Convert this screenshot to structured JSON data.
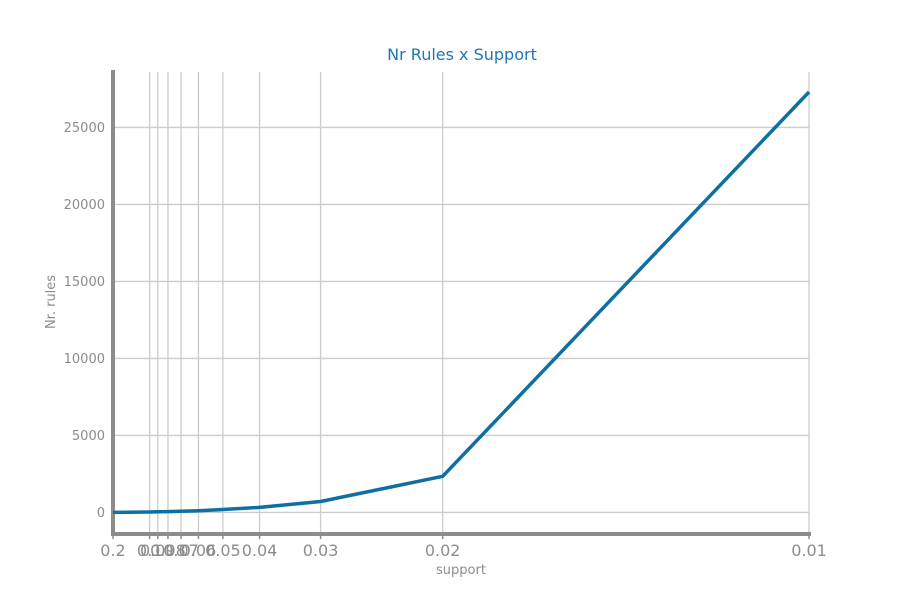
{
  "chart_data": {
    "type": "line",
    "title": "Nr Rules x Support",
    "xlabel": "support",
    "ylabel": "Nr. rules",
    "x_axis_reversed": true,
    "x_ticks": [
      "0.2",
      "0.1",
      "0.09",
      "0.08",
      "0.07",
      "0.06",
      "0.05",
      "0.04",
      "0.03",
      "0.02",
      "0.01"
    ],
    "y_ticks": [
      "0",
      "5000",
      "10000",
      "15000",
      "20000",
      "25000"
    ],
    "ylim": [
      -1400,
      28600
    ],
    "grid": true,
    "series": [
      {
        "color": "#0e6fa0",
        "x": [
          0.2,
          0.1,
          0.09,
          0.08,
          0.07,
          0.06,
          0.05,
          0.04,
          0.03,
          0.02,
          0.01
        ],
        "y": [
          0,
          30,
          40,
          55,
          75,
          110,
          190,
          330,
          710,
          2350,
          27300
        ]
      }
    ]
  }
}
